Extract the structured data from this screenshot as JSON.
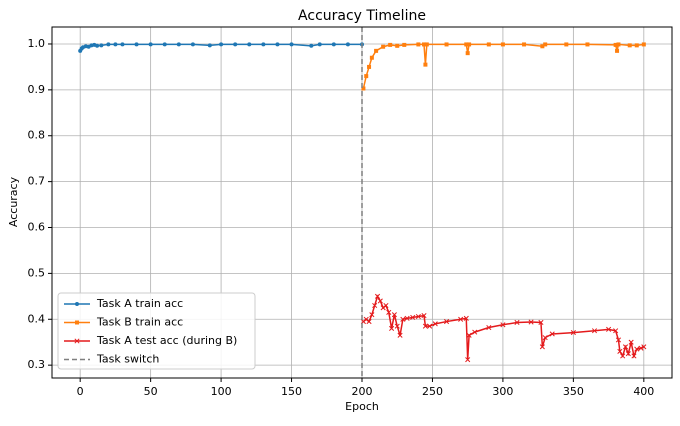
{
  "chart_data": {
    "type": "line",
    "title": "Accuracy Timeline",
    "x_label": "Epoch",
    "y_label": "Accuracy",
    "xlim": [
      -20,
      420
    ],
    "xticks": [
      0,
      50,
      100,
      150,
      200,
      250,
      300,
      350,
      400
    ],
    "ylim": [
      0.272,
      1.037
    ],
    "yticks": [
      0.3,
      0.4,
      0.5,
      0.6,
      0.7,
      0.8,
      0.9,
      {
        "value": 1,
        "label": "1.0"
      }
    ],
    "grid": true,
    "legend": "lower left",
    "series": [
      {
        "name": "Task A train acc",
        "color": "#1f77b4",
        "marker": "circle",
        "x": [
          0,
          1,
          2,
          4,
          6,
          8,
          10,
          12,
          15,
          20,
          25,
          30,
          40,
          50,
          60,
          70,
          80,
          92,
          100,
          110,
          120,
          130,
          140,
          150,
          164,
          170,
          180,
          190,
          200
        ],
        "values": [
          0.985,
          0.99,
          0.993,
          0.995,
          0.994,
          0.997,
          0.998,
          0.996,
          0.997,
          0.999,
          0.999,
          0.999,
          0.999,
          0.999,
          0.999,
          0.999,
          0.999,
          0.997,
          0.999,
          0.999,
          0.999,
          0.999,
          0.999,
          0.999,
          0.996,
          0.999,
          0.999,
          0.999,
          0.999
        ]
      },
      {
        "name": "Task B train acc",
        "color": "#ff7f0e",
        "marker": "square",
        "x": [
          201,
          203,
          205,
          207,
          210,
          215,
          220,
          225,
          230,
          240,
          244,
          245,
          246,
          260,
          274,
          275,
          276,
          290,
          300,
          315,
          328,
          330,
          345,
          360,
          380,
          381,
          382,
          390,
          395,
          400
        ],
        "values": [
          0.903,
          0.93,
          0.95,
          0.97,
          0.985,
          0.994,
          0.998,
          0.996,
          0.998,
          0.999,
          0.999,
          0.955,
          0.999,
          0.999,
          0.999,
          0.98,
          0.999,
          0.999,
          0.999,
          0.999,
          0.995,
          0.999,
          0.999,
          0.999,
          0.998,
          0.985,
          0.999,
          0.997,
          0.997,
          0.999
        ]
      },
      {
        "name": "Task A test acc (during B)",
        "color": "#e41a1c",
        "marker": "x",
        "x": [
          201,
          203,
          205,
          207,
          209,
          211,
          213,
          215,
          217,
          219,
          221,
          223,
          225,
          227,
          229,
          232,
          236,
          240,
          244,
          245,
          248,
          252,
          260,
          270,
          274,
          275,
          276,
          280,
          290,
          300,
          310,
          320,
          327,
          328,
          330,
          335,
          350,
          365,
          375,
          380,
          382,
          383,
          385,
          387,
          389,
          391,
          393,
          395,
          398,
          400
        ],
        "values": [
          0.395,
          0.4,
          0.395,
          0.41,
          0.43,
          0.45,
          0.44,
          0.425,
          0.43,
          0.415,
          0.38,
          0.41,
          0.385,
          0.365,
          0.4,
          0.402,
          0.404,
          0.406,
          0.408,
          0.385,
          0.385,
          0.39,
          0.395,
          0.4,
          0.402,
          0.312,
          0.365,
          0.372,
          0.382,
          0.388,
          0.393,
          0.394,
          0.393,
          0.34,
          0.36,
          0.368,
          0.371,
          0.375,
          0.378,
          0.375,
          0.355,
          0.33,
          0.32,
          0.34,
          0.325,
          0.35,
          0.32,
          0.335,
          0.337,
          0.34
        ]
      }
    ],
    "vline": {
      "name": "Task switch",
      "x": 200,
      "color": "#7f7f7f"
    }
  }
}
